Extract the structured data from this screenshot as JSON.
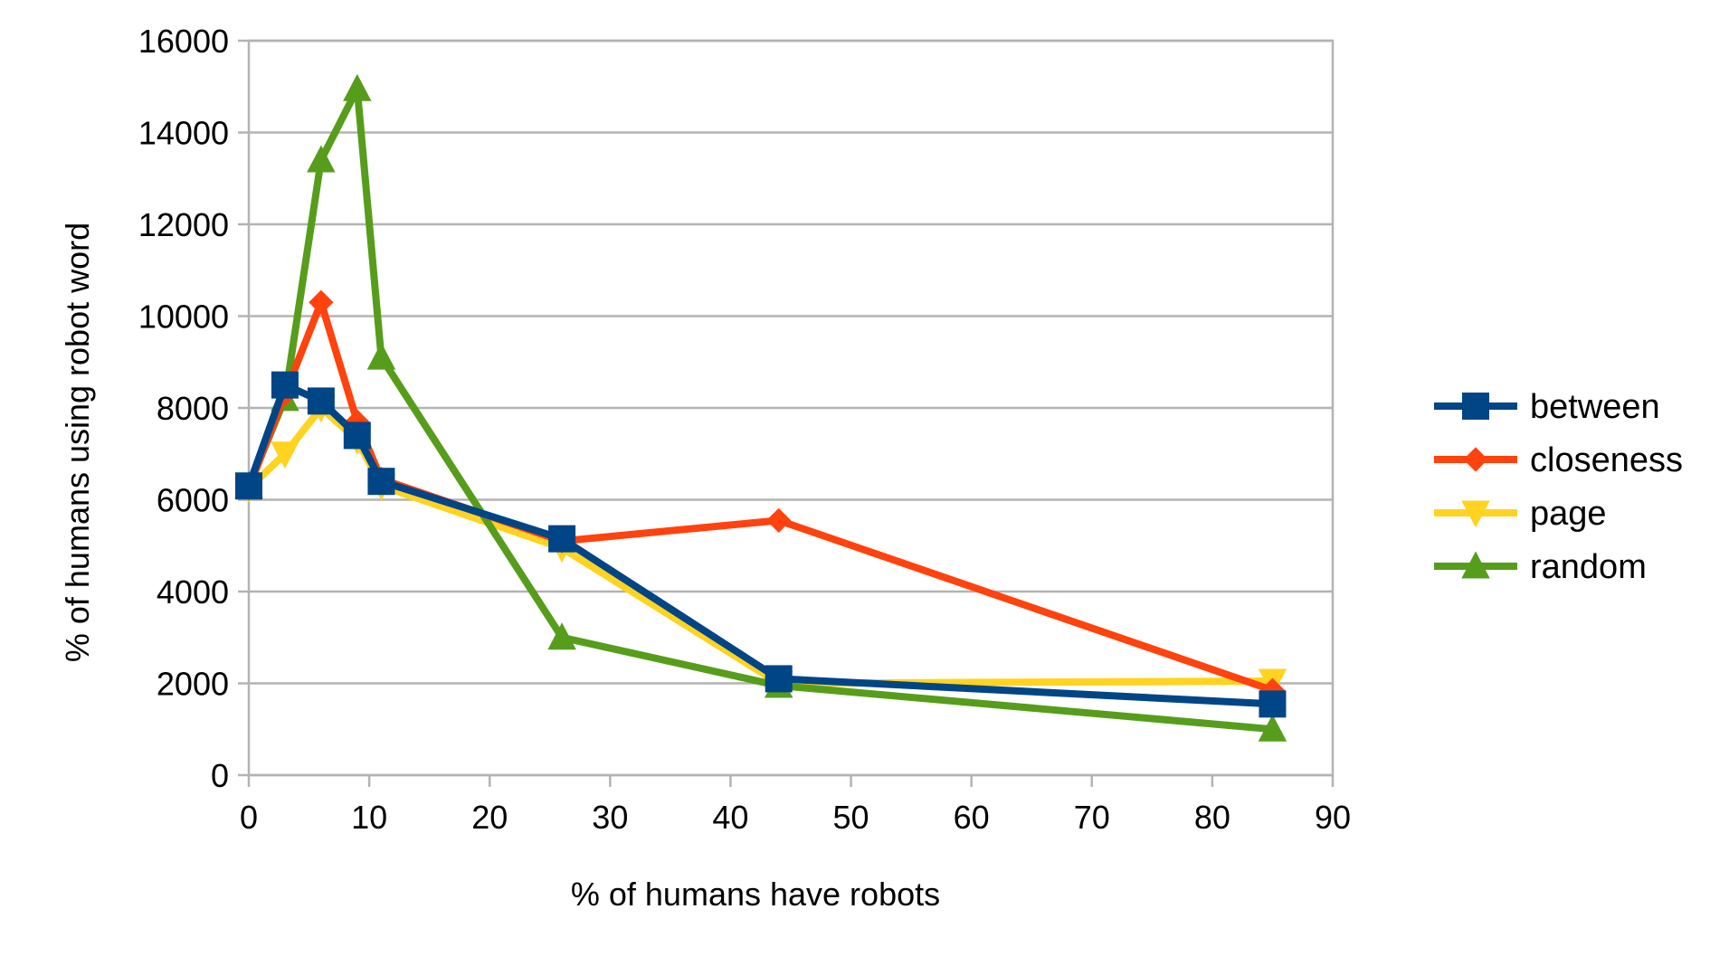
{
  "chart_data": {
    "type": "line",
    "title": "",
    "xlabel": "% of humans have robots",
    "ylabel": "% of humans using robot word",
    "xlim": [
      0,
      90
    ],
    "ylim": [
      0,
      16000
    ],
    "x_ticks": [
      0,
      10,
      20,
      30,
      40,
      50,
      60,
      70,
      80,
      90
    ],
    "y_ticks": [
      0,
      2000,
      4000,
      6000,
      8000,
      10000,
      12000,
      14000,
      16000
    ],
    "grid": "horizontal",
    "legend_position": "right",
    "x": [
      0,
      3,
      6,
      9,
      11,
      26,
      44,
      85
    ],
    "series": [
      {
        "name": "between",
        "color": "#004586",
        "marker": "square",
        "values": [
          6300,
          8500,
          8150,
          7400,
          6400,
          5150,
          2100,
          1550
        ]
      },
      {
        "name": "closeness",
        "color": "#ff420e",
        "marker": "diamond",
        "values": [
          6250,
          8300,
          10300,
          7700,
          6450,
          5100,
          5550,
          1850
        ]
      },
      {
        "name": "page",
        "color": "#ffd320",
        "marker": "triangle-down",
        "values": [
          6250,
          7000,
          8000,
          7300,
          6300,
          4950,
          2000,
          2050
        ]
      },
      {
        "name": "random",
        "color": "#579d1c",
        "marker": "triangle-up",
        "values": [
          6300,
          8200,
          13400,
          14950,
          9100,
          3000,
          1950,
          1000
        ]
      }
    ]
  }
}
